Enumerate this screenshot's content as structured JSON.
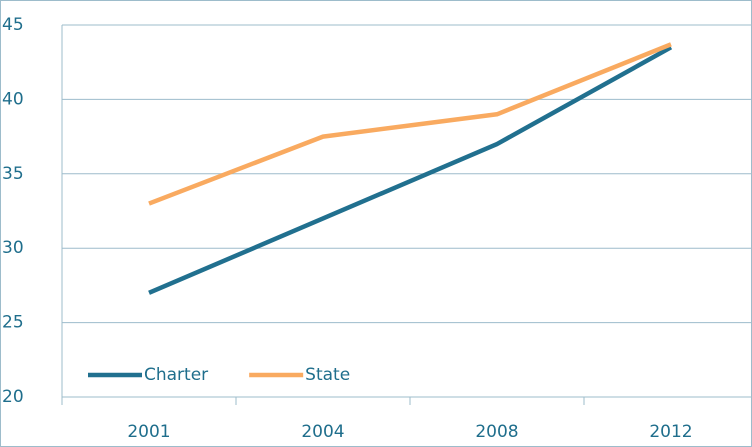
{
  "chart_data": {
    "type": "line",
    "categories": [
      "2001",
      "2004",
      "2008",
      "2012"
    ],
    "series": [
      {
        "name": "Charter",
        "color": "#21708f",
        "values": [
          27,
          32,
          37,
          43.5
        ]
      },
      {
        "name": "State",
        "color": "#f9aa60",
        "values": [
          33,
          37.5,
          39,
          43.7
        ]
      }
    ],
    "ylim": [
      20,
      45
    ],
    "yticks": [
      20,
      25,
      30,
      35,
      40,
      45
    ],
    "grid": true,
    "legend": "lower left"
  }
}
